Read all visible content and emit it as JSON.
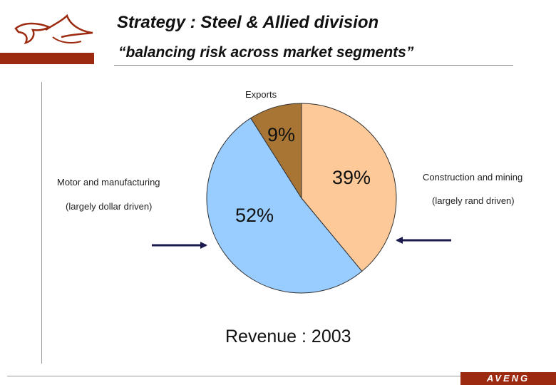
{
  "header": {
    "title": "Strategy : Steel & Allied division",
    "subtitle": "“balancing risk across market segments”"
  },
  "brand": {
    "name": "AVENG",
    "color": "#9c2a10"
  },
  "chart_data": {
    "type": "pie",
    "title": "Revenue : 2003",
    "slices": [
      {
        "label": "Construction and mining",
        "sublabel": "(largely rand driven)",
        "value": 39,
        "display": "39%",
        "color": "#fdc998"
      },
      {
        "label": "Motor and manufacturing",
        "sublabel": "(largely dollar driven)",
        "value": 52,
        "display": "52%",
        "color": "#99ccff"
      },
      {
        "label": "Exports",
        "value": 9,
        "display": "9%",
        "color": "#a87534"
      }
    ],
    "start_angle_deg": 0,
    "direction": "clockwise",
    "arrows": [
      {
        "points_to": "Motor and manufacturing",
        "direction": "right"
      },
      {
        "points_to": "Construction and mining",
        "direction": "left"
      }
    ]
  }
}
